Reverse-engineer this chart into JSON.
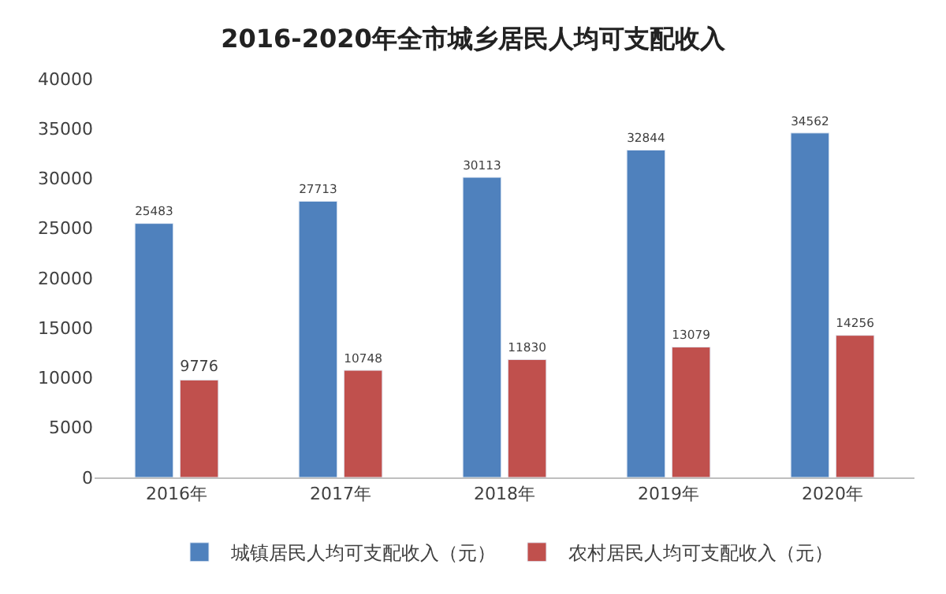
{
  "chart_data": {
    "type": "bar",
    "title": "2016-2020年全市城乡居民人均可支配收入",
    "categories": [
      "2016年",
      "2017年",
      "2018年",
      "2019年",
      "2020年"
    ],
    "series": [
      {
        "name": "城镇居民人均可支配收入（元）",
        "color": "#4f81bd",
        "values": [
          25483,
          27713,
          30113,
          32844,
          34562
        ]
      },
      {
        "name": "农村居民人均可支配收入（元）",
        "color": "#c0504d",
        "values": [
          9776,
          10748,
          11830,
          13079,
          14256
        ]
      }
    ],
    "ylim": [
      0,
      40000
    ],
    "yticks": [
      0,
      5000,
      10000,
      15000,
      20000,
      25000,
      30000,
      35000,
      40000
    ],
    "data_labels": true,
    "legend": "bottom",
    "grid": false
  }
}
